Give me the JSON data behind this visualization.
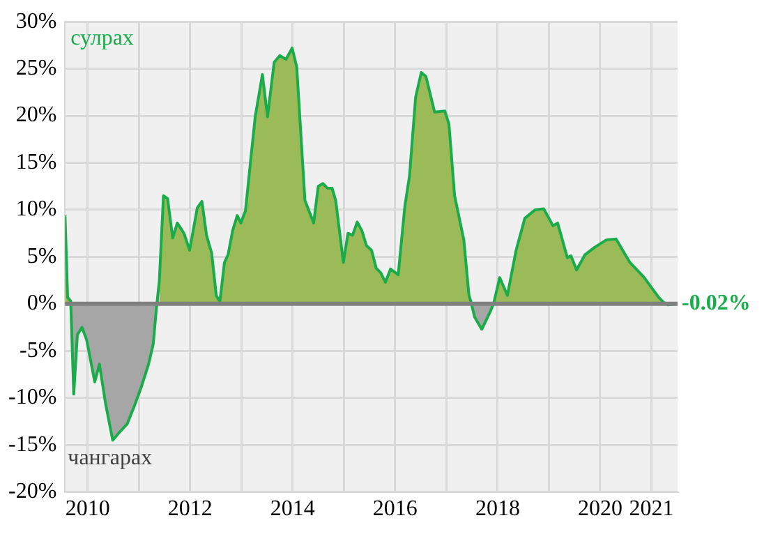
{
  "chart_data": {
    "type": "area",
    "x": [
      2009.56,
      2009.61,
      2009.67,
      2009.73,
      2009.8,
      2009.89,
      2009.98,
      2010.14,
      2010.23,
      2010.35,
      2010.49,
      2010.63,
      2010.77,
      2010.91,
      2011.05,
      2011.19,
      2011.28,
      2011.34,
      2011.4,
      2011.48,
      2011.56,
      2011.66,
      2011.75,
      2011.88,
      2011.99,
      2012.14,
      2012.23,
      2012.32,
      2012.42,
      2012.51,
      2012.58,
      2012.67,
      2012.74,
      2012.83,
      2012.92,
      2012.99,
      2013.08,
      2013.18,
      2013.27,
      2013.41,
      2013.51,
      2013.64,
      2013.75,
      2013.87,
      2013.99,
      2014.08,
      2014.24,
      2014.41,
      2014.5,
      2014.59,
      2014.68,
      2014.77,
      2014.84,
      2014.99,
      2015.08,
      2015.17,
      2015.26,
      2015.35,
      2015.44,
      2015.54,
      2015.63,
      2015.72,
      2015.81,
      2015.91,
      2016.06,
      2016.19,
      2016.28,
      2016.4,
      2016.51,
      2016.6,
      2016.77,
      2016.97,
      2017.05,
      2017.16,
      2017.34,
      2017.44,
      2017.48,
      2017.55,
      2017.69,
      2017.85,
      2017.92,
      2018.04,
      2018.19,
      2018.36,
      2018.53,
      2018.73,
      2018.9,
      2019.08,
      2019.17,
      2019.36,
      2019.43,
      2019.54,
      2019.7,
      2019.89,
      2020.12,
      2020.31,
      2020.58,
      2020.86,
      2021.14,
      2021.23,
      2021.32,
      2021.51
    ],
    "series": [
      {
        "color": "#9bbb59",
        "values": [
          9.4,
          0.7,
          0.3,
          null,
          null,
          null,
          null,
          null,
          null,
          null,
          null,
          null,
          null,
          null,
          null,
          null,
          null,
          null,
          2.5,
          11.5,
          11.2,
          7.0,
          8.6,
          7.5,
          5.7,
          10.2,
          10.9,
          7.3,
          5.4,
          0.9,
          0.2,
          4.4,
          5.2,
          7.8,
          9.4,
          8.6,
          9.9,
          15.2,
          19.9,
          24.4,
          19.9,
          25.7,
          26.4,
          26.0,
          27.2,
          25.2,
          11.0,
          8.6,
          12.5,
          12.8,
          12.3,
          12.3,
          11.0,
          4.4,
          7.5,
          7.3,
          8.7,
          7.8,
          6.2,
          5.7,
          3.8,
          3.3,
          2.3,
          3.7,
          3.1,
          10.4,
          13.6,
          22.0,
          24.6,
          24.2,
          20.4,
          20.5,
          19.1,
          11.5,
          6.8,
          0.9,
          0.2,
          null,
          null,
          null,
          0,
          2.8,
          0.9,
          5.7,
          9.1,
          10.0,
          10.1,
          8.3,
          8.6,
          4.9,
          5.1,
          3.6,
          5.2,
          6.0,
          6.8,
          6.9,
          4.4,
          2.8,
          0.7,
          0.2,
          null,
          null
        ]
      },
      {
        "type": "line",
        "color": "#1aab4a",
        "values": [
          9.4,
          0.7,
          0.3,
          -9.6,
          -3.3,
          -2.5,
          -3.8,
          -8.3,
          -6.4,
          -10.6,
          -14.5,
          -13.6,
          -12.8,
          -10.9,
          -8.8,
          -6.4,
          -4.3,
          -0.6,
          2.5,
          11.5,
          11.2,
          7.0,
          8.6,
          7.5,
          5.7,
          10.2,
          10.9,
          7.3,
          5.4,
          0.9,
          0.2,
          4.4,
          5.2,
          7.8,
          9.4,
          8.6,
          9.9,
          15.2,
          19.9,
          24.4,
          19.9,
          25.7,
          26.4,
          26.0,
          27.2,
          25.2,
          11.0,
          8.6,
          12.5,
          12.8,
          12.3,
          12.3,
          11.0,
          4.4,
          7.5,
          7.3,
          8.7,
          7.8,
          6.2,
          5.7,
          3.8,
          3.3,
          2.3,
          3.7,
          3.1,
          10.4,
          13.6,
          22.0,
          24.6,
          24.2,
          20.4,
          20.5,
          19.1,
          11.5,
          6.8,
          0.9,
          0.2,
          -1.4,
          -2.7,
          -0.9,
          0,
          2.8,
          0.9,
          5.7,
          9.1,
          10.0,
          10.1,
          8.3,
          8.6,
          4.9,
          5.1,
          3.6,
          5.2,
          6.0,
          6.8,
          6.9,
          4.4,
          2.8,
          0.7,
          0.2,
          -0.1,
          -0.02
        ]
      },
      {
        "color": "#a6a6a6",
        "values": [
          null,
          null,
          0.3,
          -9.6,
          -3.3,
          -2.5,
          -3.8,
          -8.3,
          -6.4,
          -10.6,
          -14.5,
          -13.6,
          -12.8,
          -10.9,
          -8.8,
          -6.4,
          -4.3,
          -0.6,
          2.5,
          null,
          null,
          null,
          null,
          null,
          null,
          null,
          null,
          null,
          null,
          null,
          null,
          null,
          null,
          null,
          null,
          null,
          null,
          null,
          null,
          null,
          null,
          null,
          null,
          null,
          null,
          null,
          null,
          null,
          null,
          null,
          null,
          null,
          null,
          null,
          null,
          null,
          null,
          null,
          null,
          null,
          null,
          null,
          null,
          null,
          null,
          null,
          null,
          null,
          null,
          null,
          null,
          null,
          null,
          null,
          null,
          null,
          0.2,
          -1.4,
          -2.7,
          -0.9,
          0,
          null,
          null,
          null,
          null,
          null,
          null,
          null,
          null,
          null,
          null,
          null,
          null,
          null,
          null,
          null,
          null,
          null,
          null,
          0.2,
          -0.1,
          -0.02
        ]
      }
    ],
    "xlim": [
      2009.56,
      2021.51
    ],
    "xticks": [
      2010,
      {
        "value": 2011,
        "label": null
      },
      2012,
      {
        "value": 2013,
        "label": null
      },
      2014,
      {
        "value": 2015,
        "label": null
      },
      2016,
      {
        "value": 2017,
        "label": null
      },
      2018,
      {
        "value": 2019,
        "label": null
      },
      2020,
      2021
    ],
    "ylim": [
      -20,
      30
    ],
    "yticks": [
      {
        "value": -20,
        "label": "-20%"
      },
      {
        "value": -15,
        "label": "-15%"
      },
      {
        "value": -10,
        "label": "-10%"
      },
      {
        "value": -5,
        "label": "-5%"
      },
      {
        "value": 0,
        "label": "0%"
      },
      {
        "value": 5,
        "label": "5%"
      },
      {
        "value": 10,
        "label": "10%"
      },
      {
        "value": 15,
        "label": "15%"
      },
      {
        "value": 20,
        "label": "20%"
      },
      {
        "value": 25,
        "label": "25%"
      },
      {
        "value": 30,
        "label": "30%"
      }
    ],
    "grid": true,
    "legend": false,
    "ref_lines": [
      {
        "axis": "y",
        "value": 0,
        "color": "#808080"
      }
    ],
    "annotations": [
      "сулрах",
      "чангарах",
      {
        "text": "-0.02%",
        "x": 2021.51,
        "y": -0.02
      }
    ]
  }
}
